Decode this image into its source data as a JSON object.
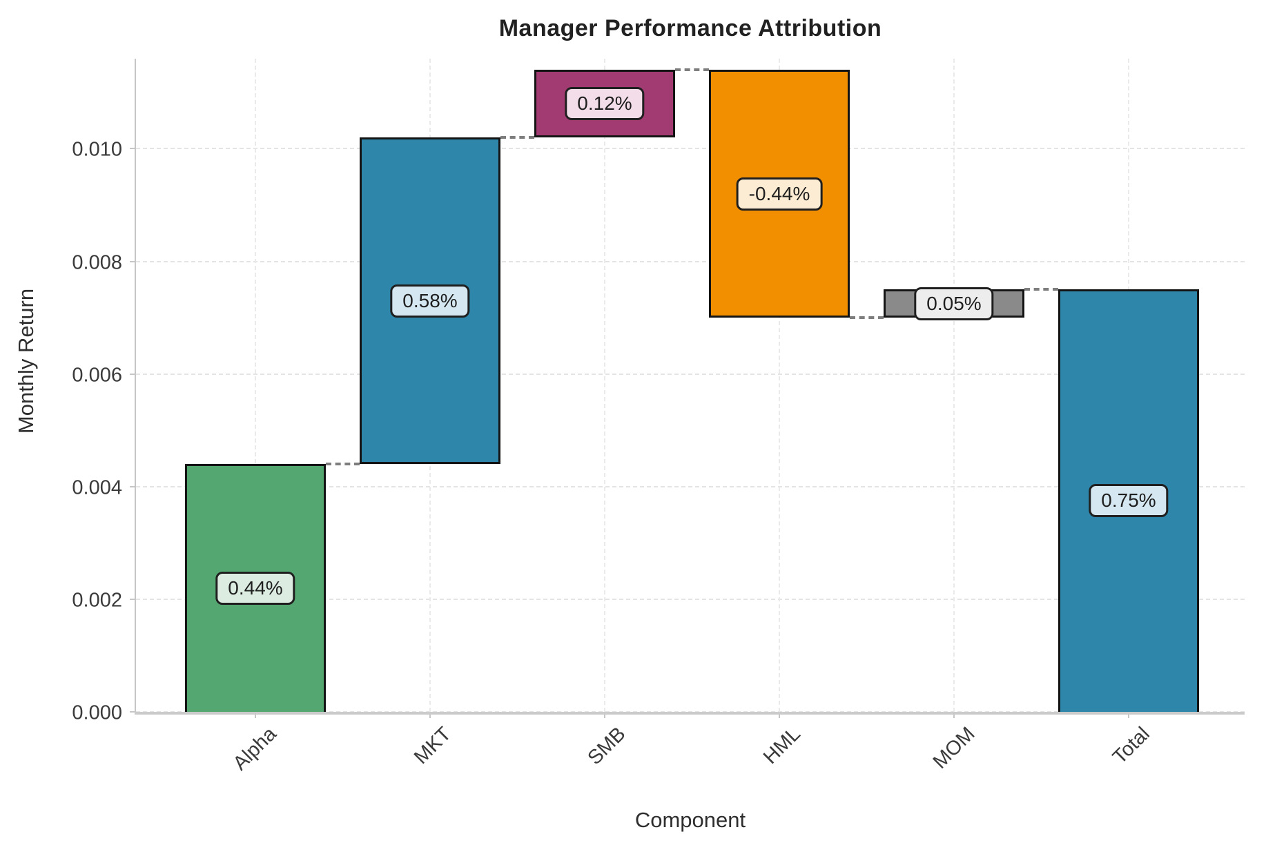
{
  "chart_data": {
    "type": "bar",
    "subtype": "waterfall",
    "title": "Manager Performance Attribution",
    "xlabel": "Component",
    "ylabel": "Monthly Return",
    "categories": [
      "Alpha",
      "MKT",
      "SMB",
      "HML",
      "MOM",
      "Total"
    ],
    "values": [
      0.0044,
      0.0058,
      0.0012,
      -0.0044,
      0.0005,
      0.0075
    ],
    "value_labels": [
      "0.44%",
      "0.58%",
      "0.12%",
      "-0.44%",
      "0.05%",
      "0.75%"
    ],
    "bars": [
      {
        "category": "Alpha",
        "label": "0.44%",
        "low": 0.0,
        "high": 0.0044,
        "color": "#54a771",
        "label_bg": "#dcece1"
      },
      {
        "category": "MKT",
        "label": "0.58%",
        "low": 0.0044,
        "high": 0.0102,
        "color": "#2e86ab",
        "label_bg": "#d5e7f0"
      },
      {
        "category": "SMB",
        "label": "0.12%",
        "low": 0.0102,
        "high": 0.0114,
        "color": "#a23b72",
        "label_bg": "#f3dde8"
      },
      {
        "category": "HML",
        "label": "-0.44%",
        "low": 0.007,
        "high": 0.0114,
        "color": "#f18f01",
        "label_bg": "#fcecd3"
      },
      {
        "category": "MOM",
        "label": "0.05%",
        "low": 0.007,
        "high": 0.0075,
        "color": "#8a8a8a",
        "label_bg": "#ededed"
      },
      {
        "category": "Total",
        "label": "0.75%",
        "low": 0.0,
        "high": 0.0075,
        "color": "#2e86ab",
        "label_bg": "#d5e7f0"
      }
    ],
    "connector_levels": [
      0.0044,
      0.0102,
      0.0114,
      0.007,
      0.0075
    ],
    "y_ticks": [
      {
        "label": "0.000",
        "value": 0.0
      },
      {
        "label": "0.002",
        "value": 0.002
      },
      {
        "label": "0.004",
        "value": 0.004
      },
      {
        "label": "0.006",
        "value": 0.006
      },
      {
        "label": "0.008",
        "value": 0.008
      },
      {
        "label": "0.010",
        "value": 0.01
      }
    ],
    "ylim": [
      0,
      0.0116
    ],
    "grid": true,
    "legend": null,
    "colors": {
      "bar_edge": "#141414",
      "grid": "#e4e4e4",
      "connector": "#7d7d7d",
      "spine": "#c6c6c6",
      "text": "#3a3a3a",
      "title": "#212121"
    }
  }
}
